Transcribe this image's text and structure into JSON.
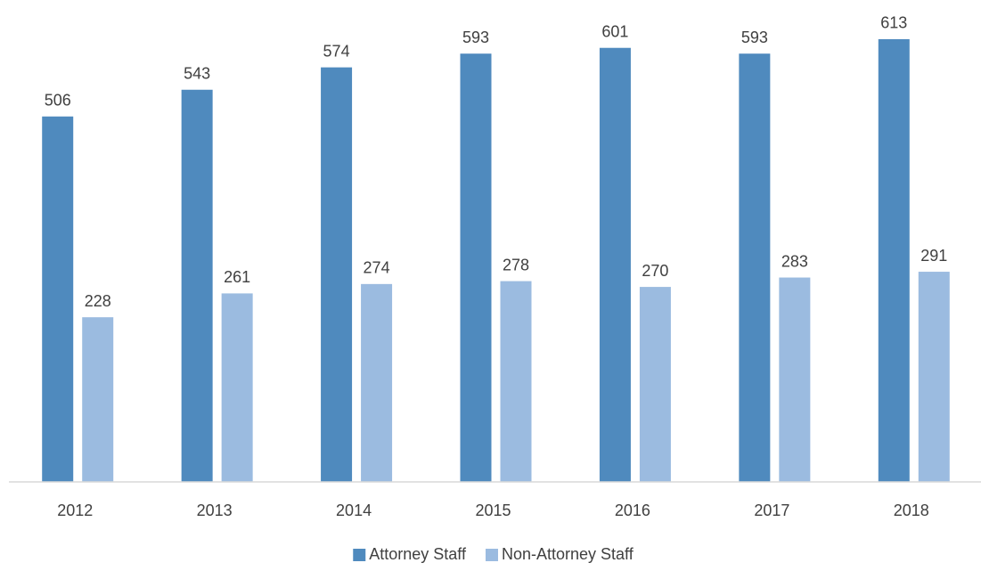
{
  "chart_data": {
    "type": "bar",
    "categories": [
      "2012",
      "2013",
      "2014",
      "2015",
      "2016",
      "2017",
      "2018"
    ],
    "series": [
      {
        "name": "Attorney Staff",
        "color": "#4f8abe",
        "values": [
          506,
          543,
          574,
          593,
          601,
          593,
          613
        ]
      },
      {
        "name": "Non-Attorney Staff",
        "color": "#9bbbe0",
        "values": [
          228,
          261,
          274,
          278,
          270,
          283,
          291
        ]
      }
    ],
    "ylim": [
      0,
      650
    ],
    "legend": "bottom"
  }
}
